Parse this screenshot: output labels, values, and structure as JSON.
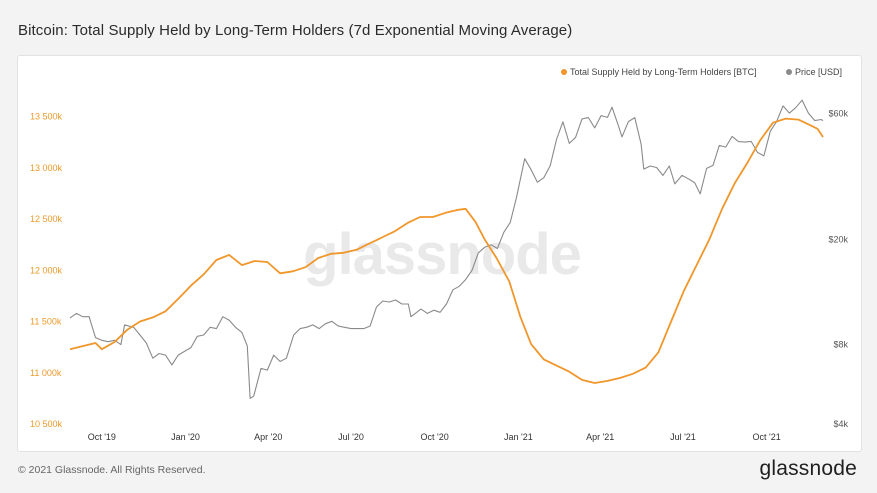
{
  "title": "Bitcoin: Total Supply Held by Long-Term Holders (7d Exponential Moving Average)",
  "footer": {
    "copyright": "© 2021 Glassnode. All Rights Reserved.",
    "brand": "glassnode"
  },
  "watermark": "glassnode",
  "colors": {
    "supply": "#f0962a",
    "price": "#8a8a8a",
    "left_axis": "#ec9a2a",
    "background": "#f3f3f3"
  },
  "chart_data": {
    "type": "line",
    "title": "Bitcoin: Total Supply Held by Long-Term Holders (7d Exponential Moving Average)",
    "x_range": [
      "2019-08-27",
      "2021-12-02"
    ],
    "x_ticks": [
      {
        "date": "2019-10-01",
        "label": "Oct '19"
      },
      {
        "date": "2020-01-01",
        "label": "Jan '20"
      },
      {
        "date": "2020-04-01",
        "label": "Apr '20"
      },
      {
        "date": "2020-07-01",
        "label": "Jul '20"
      },
      {
        "date": "2020-10-01",
        "label": "Oct '20"
      },
      {
        "date": "2021-01-01",
        "label": "Jan '21"
      },
      {
        "date": "2021-04-01",
        "label": "Apr '21"
      },
      {
        "date": "2021-07-01",
        "label": "Jul '21"
      },
      {
        "date": "2021-10-01",
        "label": "Oct '21"
      }
    ],
    "y_left": {
      "range": [
        10500000,
        13700000
      ],
      "ticks": [
        {
          "value": 10500000,
          "label": "10 500k"
        },
        {
          "value": 11000000,
          "label": "11 000k"
        },
        {
          "value": 11500000,
          "label": "11 500k"
        },
        {
          "value": 12000000,
          "label": "12 000k"
        },
        {
          "value": 12500000,
          "label": "12 500k"
        },
        {
          "value": 13000000,
          "label": "13 000k"
        },
        {
          "value": 13500000,
          "label": "13 500k"
        }
      ]
    },
    "y_right": {
      "scale": "log",
      "range": [
        4000,
        70000
      ],
      "ticks": [
        {
          "value": 4000,
          "label": "$4k"
        },
        {
          "value": 8000,
          "label": "$8k"
        },
        {
          "value": 20000,
          "label": "$20k"
        },
        {
          "value": 60000,
          "label": "$60k"
        }
      ]
    },
    "legend_position": "top-right",
    "grid": false,
    "series": [
      {
        "name": "Total Supply Held by Long-Term Holders [BTC]",
        "axis": "left",
        "color": "#f0962a",
        "points": [
          [
            "2019-08-27",
            11230000
          ],
          [
            "2019-09-10",
            11260000
          ],
          [
            "2019-09-24",
            11290000
          ],
          [
            "2019-10-01",
            11230000
          ],
          [
            "2019-10-15",
            11300000
          ],
          [
            "2019-10-29",
            11420000
          ],
          [
            "2019-11-12",
            11500000
          ],
          [
            "2019-11-26",
            11540000
          ],
          [
            "2019-12-10",
            11600000
          ],
          [
            "2019-12-24",
            11720000
          ],
          [
            "2020-01-07",
            11850000
          ],
          [
            "2020-01-21",
            11960000
          ],
          [
            "2020-02-04",
            12100000
          ],
          [
            "2020-02-18",
            12150000
          ],
          [
            "2020-03-03",
            12050000
          ],
          [
            "2020-03-17",
            12090000
          ],
          [
            "2020-03-31",
            12080000
          ],
          [
            "2020-04-14",
            11970000
          ],
          [
            "2020-04-28",
            11990000
          ],
          [
            "2020-05-12",
            12030000
          ],
          [
            "2020-05-26",
            12120000
          ],
          [
            "2020-06-09",
            12160000
          ],
          [
            "2020-06-23",
            12170000
          ],
          [
            "2020-07-07",
            12200000
          ],
          [
            "2020-07-21",
            12260000
          ],
          [
            "2020-08-04",
            12320000
          ],
          [
            "2020-08-18",
            12380000
          ],
          [
            "2020-09-01",
            12460000
          ],
          [
            "2020-09-15",
            12520000
          ],
          [
            "2020-09-29",
            12520000
          ],
          [
            "2020-10-13",
            12560000
          ],
          [
            "2020-10-27",
            12590000
          ],
          [
            "2020-11-04",
            12600000
          ],
          [
            "2020-11-15",
            12470000
          ],
          [
            "2020-11-25",
            12300000
          ],
          [
            "2020-12-08",
            12120000
          ],
          [
            "2020-12-22",
            11890000
          ],
          [
            "2021-01-03",
            11550000
          ],
          [
            "2021-01-15",
            11280000
          ],
          [
            "2021-01-29",
            11130000
          ],
          [
            "2021-02-12",
            11070000
          ],
          [
            "2021-02-26",
            11010000
          ],
          [
            "2021-03-12",
            10930000
          ],
          [
            "2021-03-26",
            10900000
          ],
          [
            "2021-04-09",
            10920000
          ],
          [
            "2021-04-23",
            10950000
          ],
          [
            "2021-05-07",
            10990000
          ],
          [
            "2021-05-21",
            11050000
          ],
          [
            "2021-06-04",
            11200000
          ],
          [
            "2021-06-18",
            11500000
          ],
          [
            "2021-07-02",
            11800000
          ],
          [
            "2021-07-16",
            12050000
          ],
          [
            "2021-07-30",
            12300000
          ],
          [
            "2021-08-13",
            12600000
          ],
          [
            "2021-08-27",
            12850000
          ],
          [
            "2021-09-10",
            13050000
          ],
          [
            "2021-09-24",
            13270000
          ],
          [
            "2021-10-08",
            13440000
          ],
          [
            "2021-10-22",
            13480000
          ],
          [
            "2021-11-05",
            13470000
          ],
          [
            "2021-11-19",
            13410000
          ],
          [
            "2021-11-26",
            13380000
          ],
          [
            "2021-12-02",
            13300000
          ]
        ]
      },
      {
        "name": "Price [USD]",
        "axis": "right",
        "color": "#8a8a8a",
        "points": [
          [
            "2019-08-27",
            10100
          ],
          [
            "2019-09-03",
            10500
          ],
          [
            "2019-09-10",
            10200
          ],
          [
            "2019-09-17",
            10200
          ],
          [
            "2019-09-24",
            8500
          ],
          [
            "2019-10-01",
            8300
          ],
          [
            "2019-10-08",
            8200
          ],
          [
            "2019-10-15",
            8300
          ],
          [
            "2019-10-22",
            8000
          ],
          [
            "2019-10-26",
            9500
          ],
          [
            "2019-11-05",
            9300
          ],
          [
            "2019-11-12",
            8700
          ],
          [
            "2019-11-19",
            8100
          ],
          [
            "2019-11-26",
            7100
          ],
          [
            "2019-12-03",
            7400
          ],
          [
            "2019-12-10",
            7300
          ],
          [
            "2019-12-17",
            6700
          ],
          [
            "2019-12-24",
            7300
          ],
          [
            "2020-01-07",
            7800
          ],
          [
            "2020-01-14",
            8600
          ],
          [
            "2020-01-21",
            8700
          ],
          [
            "2020-01-28",
            9300
          ],
          [
            "2020-02-04",
            9200
          ],
          [
            "2020-02-11",
            10200
          ],
          [
            "2020-02-18",
            9900
          ],
          [
            "2020-02-25",
            9300
          ],
          [
            "2020-03-03",
            8900
          ],
          [
            "2020-03-09",
            7900
          ],
          [
            "2020-03-12",
            5000
          ],
          [
            "2020-03-16",
            5100
          ],
          [
            "2020-03-24",
            6500
          ],
          [
            "2020-03-31",
            6400
          ],
          [
            "2020-04-07",
            7300
          ],
          [
            "2020-04-14",
            6900
          ],
          [
            "2020-04-21",
            7100
          ],
          [
            "2020-04-29",
            8700
          ],
          [
            "2020-05-06",
            9200
          ],
          [
            "2020-05-13",
            9300
          ],
          [
            "2020-05-20",
            9500
          ],
          [
            "2020-05-27",
            9200
          ],
          [
            "2020-06-03",
            9600
          ],
          [
            "2020-06-10",
            9800
          ],
          [
            "2020-06-17",
            9400
          ],
          [
            "2020-06-24",
            9300
          ],
          [
            "2020-07-01",
            9200
          ],
          [
            "2020-07-15",
            9200
          ],
          [
            "2020-07-22",
            9400
          ],
          [
            "2020-07-29",
            11100
          ],
          [
            "2020-08-05",
            11700
          ],
          [
            "2020-08-12",
            11600
          ],
          [
            "2020-08-19",
            11800
          ],
          [
            "2020-08-26",
            11400
          ],
          [
            "2020-09-02",
            11400
          ],
          [
            "2020-09-05",
            10200
          ],
          [
            "2020-09-16",
            10900
          ],
          [
            "2020-09-23",
            10500
          ],
          [
            "2020-09-30",
            10800
          ],
          [
            "2020-10-07",
            10600
          ],
          [
            "2020-10-14",
            11400
          ],
          [
            "2020-10-21",
            12900
          ],
          [
            "2020-10-28",
            13300
          ],
          [
            "2020-11-04",
            14100
          ],
          [
            "2020-11-11",
            15300
          ],
          [
            "2020-11-18",
            17800
          ],
          [
            "2020-11-25",
            18700
          ],
          [
            "2020-12-02",
            19100
          ],
          [
            "2020-12-09",
            18500
          ],
          [
            "2020-12-16",
            21300
          ],
          [
            "2020-12-23",
            23200
          ],
          [
            "2020-12-30",
            28900
          ],
          [
            "2021-01-08",
            40500
          ],
          [
            "2021-01-15",
            36800
          ],
          [
            "2021-01-22",
            33000
          ],
          [
            "2021-01-29",
            34300
          ],
          [
            "2021-02-05",
            38100
          ],
          [
            "2021-02-12",
            47900
          ],
          [
            "2021-02-19",
            55900
          ],
          [
            "2021-02-26",
            46300
          ],
          [
            "2021-03-05",
            48800
          ],
          [
            "2021-03-12",
            57300
          ],
          [
            "2021-03-19",
            58000
          ],
          [
            "2021-03-26",
            53000
          ],
          [
            "2021-04-02",
            59000
          ],
          [
            "2021-04-09",
            58100
          ],
          [
            "2021-04-14",
            63500
          ],
          [
            "2021-04-21",
            54000
          ],
          [
            "2021-04-25",
            49000
          ],
          [
            "2021-05-02",
            56000
          ],
          [
            "2021-05-09",
            58000
          ],
          [
            "2021-05-16",
            46000
          ],
          [
            "2021-05-19",
            37000
          ],
          [
            "2021-05-26",
            38000
          ],
          [
            "2021-06-02",
            37500
          ],
          [
            "2021-06-09",
            35000
          ],
          [
            "2021-06-16",
            38000
          ],
          [
            "2021-06-22",
            32500
          ],
          [
            "2021-06-30",
            35000
          ],
          [
            "2021-07-07",
            34000
          ],
          [
            "2021-07-14",
            32800
          ],
          [
            "2021-07-20",
            29800
          ],
          [
            "2021-07-27",
            37200
          ],
          [
            "2021-08-03",
            38200
          ],
          [
            "2021-08-10",
            45500
          ],
          [
            "2021-08-17",
            44800
          ],
          [
            "2021-08-24",
            49200
          ],
          [
            "2021-08-31",
            47000
          ],
          [
            "2021-09-07",
            46800
          ],
          [
            "2021-09-14",
            47100
          ],
          [
            "2021-09-21",
            42800
          ],
          [
            "2021-09-28",
            41500
          ],
          [
            "2021-10-05",
            51500
          ],
          [
            "2021-10-12",
            56000
          ],
          [
            "2021-10-19",
            64200
          ],
          [
            "2021-10-26",
            60300
          ],
          [
            "2021-11-02",
            63200
          ],
          [
            "2021-11-09",
            67500
          ],
          [
            "2021-11-16",
            60300
          ],
          [
            "2021-11-23",
            56500
          ],
          [
            "2021-11-30",
            57000
          ],
          [
            "2021-12-02",
            56500
          ]
        ]
      }
    ]
  }
}
